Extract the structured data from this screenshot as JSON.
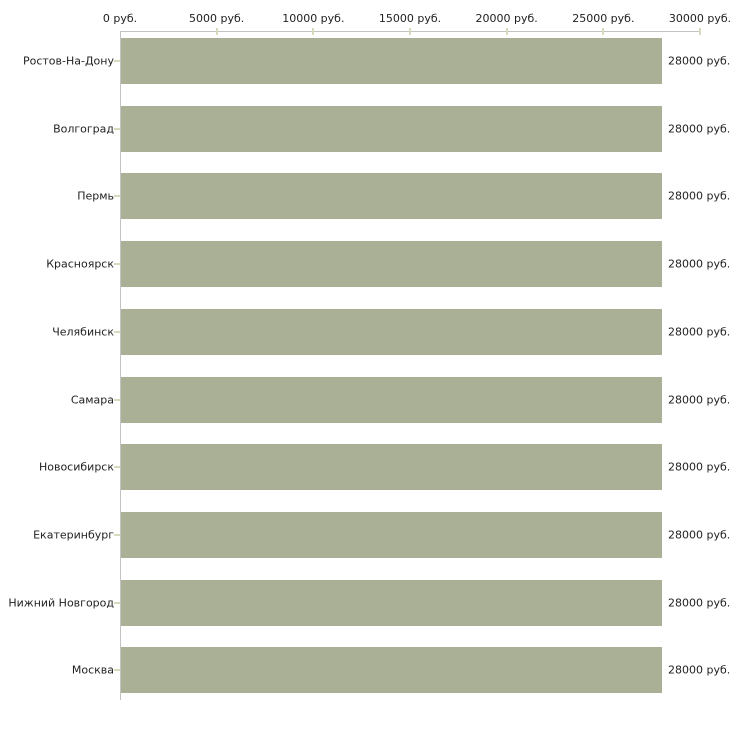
{
  "page": {
    "background_color": "#ffffff"
  },
  "chart_data": {
    "type": "bar",
    "orientation": "horizontal",
    "title": "",
    "xlabel": "",
    "ylabel": "",
    "categories": [
      "Ростов-На-Дону",
      "Волгоград",
      "Пермь",
      "Красноярск",
      "Челябинск",
      "Самара",
      "Новосибирск",
      "Екатеринбург",
      "Нижний Новгород",
      "Москва"
    ],
    "values": [
      28000,
      28000,
      28000,
      28000,
      28000,
      28000,
      28000,
      28000,
      28000,
      28000
    ],
    "value_labels": [
      "28000 руб.",
      "28000 руб.",
      "28000 руб.",
      "28000 руб.",
      "28000 руб.",
      "28000 руб.",
      "28000 руб.",
      "28000 руб.",
      "28000 руб.",
      "28000 руб."
    ],
    "x_axis": {
      "position": "top",
      "min": 0,
      "max": 30000,
      "tick_values": [
        0,
        5000,
        10000,
        15000,
        20000,
        25000,
        30000
      ],
      "tick_labels": [
        "0 руб.",
        "5000 руб.",
        "10000 руб.",
        "15000 руб.",
        "20000 руб.",
        "25000 руб.",
        "30000 руб."
      ]
    },
    "legend": null,
    "grid": false,
    "colors": {
      "bar_fill": "#aab095",
      "axis_line": "#c3c3c3",
      "tick_mark": "#d8d9bd",
      "text": "#222222"
    }
  }
}
